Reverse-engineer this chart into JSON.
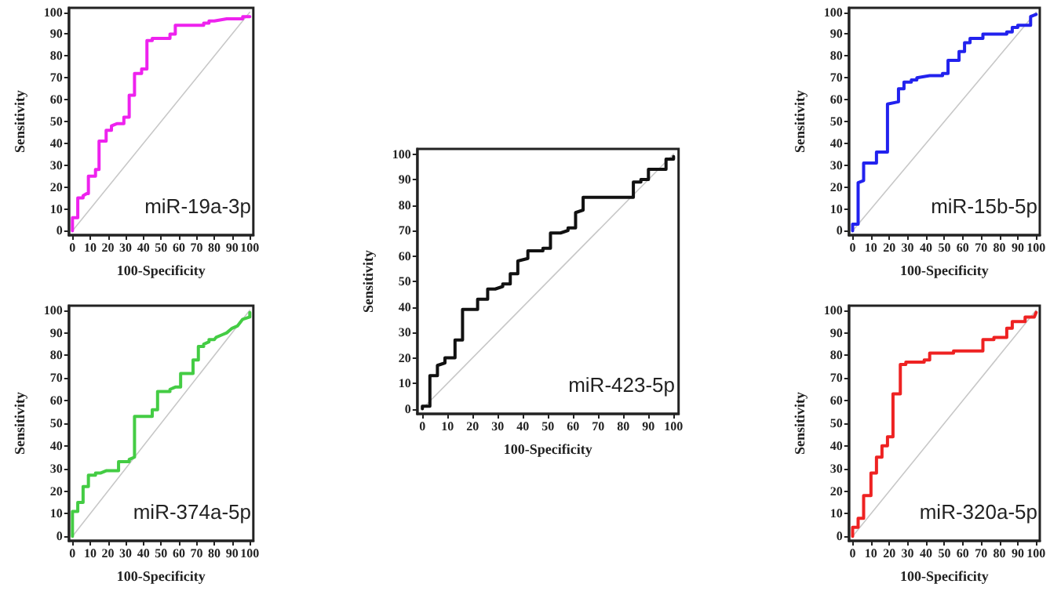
{
  "chart_data": [
    {
      "type": "line",
      "xlabel": "100-Specificity",
      "ylabel": "Sensitivity",
      "xlim": [
        -2,
        102
      ],
      "ylim": [
        -2,
        102
      ],
      "xticks": [
        0,
        10,
        20,
        30,
        40,
        50,
        60,
        70,
        80,
        90,
        100
      ],
      "yticks": [
        0,
        10,
        20,
        30,
        40,
        50,
        60,
        70,
        80,
        90,
        100
      ],
      "annotations": [
        "miR-19a-3p"
      ],
      "marker": "none",
      "grid": false,
      "series": [
        {
          "color": "#ee22ee",
          "x": [
            0,
            0,
            3,
            3,
            6,
            6,
            8,
            9,
            9,
            13,
            13,
            15,
            15,
            19,
            19,
            22,
            22,
            25,
            29,
            29,
            32,
            32,
            35,
            35,
            39,
            39,
            42,
            42,
            45,
            45,
            55,
            55,
            58,
            58,
            74,
            74,
            77,
            77,
            80,
            87,
            96,
            96,
            100
          ],
          "values": [
            0,
            6,
            6,
            15,
            15,
            16,
            17,
            17,
            25,
            25,
            28,
            28,
            41,
            41,
            46,
            46,
            48,
            49,
            49,
            52,
            52,
            62,
            62,
            72,
            72,
            74,
            74,
            87,
            87,
            88,
            88,
            90,
            90,
            94,
            94,
            95,
            95,
            96,
            96,
            97,
            97,
            98,
            98
          ]
        },
        {
          "color": "#c8c8c8",
          "x": [
            0,
            100
          ],
          "values": [
            0,
            100
          ]
        }
      ]
    },
    {
      "type": "line",
      "xlabel": "100-Specificity",
      "ylabel": "Sensitivity",
      "xlim": [
        -2,
        102
      ],
      "ylim": [
        -2,
        102
      ],
      "xticks": [
        0,
        10,
        20,
        30,
        40,
        50,
        60,
        70,
        80,
        90,
        100
      ],
      "yticks": [
        0,
        10,
        20,
        30,
        40,
        50,
        60,
        70,
        80,
        90,
        100
      ],
      "annotations": [
        "miR-374a-5p"
      ],
      "marker": "none",
      "grid": false,
      "series": [
        {
          "color": "#44cc44",
          "x": [
            0,
            0,
            3,
            3,
            6,
            6,
            9,
            9,
            13,
            13,
            16,
            19,
            26,
            26,
            32,
            32,
            35,
            35,
            45,
            45,
            48,
            48,
            55,
            55,
            58,
            61,
            61,
            68,
            68,
            71,
            71,
            74,
            74,
            77,
            77,
            80,
            81,
            84,
            87,
            90,
            93,
            96,
            100,
            100
          ],
          "values": [
            0,
            11,
            11,
            15,
            15,
            22,
            22,
            27,
            27,
            28,
            28,
            29,
            29,
            33,
            33,
            34,
            35,
            53,
            53,
            56,
            56,
            64,
            64,
            65,
            66,
            66,
            72,
            72,
            78,
            78,
            84,
            84,
            85,
            86,
            87,
            87,
            88,
            89,
            90,
            92,
            93,
            96,
            97,
            99
          ]
        },
        {
          "color": "#c8c8c8",
          "x": [
            0,
            100
          ],
          "values": [
            0,
            100
          ]
        }
      ]
    },
    {
      "type": "line",
      "xlabel": "100-Specificity",
      "ylabel": "Sensitivity",
      "xlim": [
        -2,
        102
      ],
      "ylim": [
        -2,
        102
      ],
      "xticks": [
        0,
        10,
        20,
        30,
        40,
        50,
        60,
        70,
        80,
        90,
        100
      ],
      "yticks": [
        0,
        10,
        20,
        30,
        40,
        50,
        60,
        70,
        80,
        90,
        100
      ],
      "annotations": [
        "miR-423-5p"
      ],
      "marker": "none",
      "grid": false,
      "series": [
        {
          "color": "#111111",
          "x": [
            0,
            0,
            3,
            3,
            6,
            6,
            9,
            9,
            13,
            13,
            16,
            16,
            22,
            22,
            26,
            26,
            29,
            32,
            32,
            35,
            35,
            38,
            38,
            42,
            42,
            48,
            48,
            51,
            51,
            55,
            58,
            58,
            61,
            61,
            64,
            64,
            84,
            84,
            87,
            87,
            90,
            90,
            97,
            97,
            100,
            100
          ],
          "values": [
            0,
            1,
            1,
            13,
            13,
            17,
            18,
            20,
            20,
            27,
            27,
            39,
            39,
            43,
            43,
            47,
            47,
            48,
            49,
            49,
            53,
            53,
            58,
            59,
            62,
            62,
            63,
            63,
            69,
            69,
            70,
            71,
            71,
            77,
            78,
            83,
            83,
            89,
            89,
            90,
            90,
            94,
            94,
            98,
            98,
            99
          ]
        },
        {
          "color": "#c8c8c8",
          "x": [
            0,
            100
          ],
          "values": [
            0,
            100
          ]
        }
      ]
    },
    {
      "type": "line",
      "xlabel": "100-Specificity",
      "ylabel": "Sensitivity",
      "xlim": [
        -2,
        102
      ],
      "ylim": [
        -2,
        102
      ],
      "xticks": [
        0,
        10,
        20,
        30,
        40,
        50,
        60,
        70,
        80,
        90,
        100
      ],
      "yticks": [
        0,
        10,
        20,
        30,
        40,
        50,
        60,
        70,
        80,
        90,
        100
      ],
      "annotations": [
        "miR-15b-5p"
      ],
      "marker": "none",
      "grid": false,
      "series": [
        {
          "color": "#2222ee",
          "x": [
            0,
            0,
            3,
            3,
            6,
            6,
            13,
            13,
            19,
            19,
            25,
            25,
            28,
            28,
            32,
            32,
            35,
            35,
            42,
            49,
            49,
            52,
            52,
            58,
            58,
            61,
            61,
            64,
            64,
            71,
            71,
            84,
            84,
            87,
            87,
            90,
            90,
            97,
            97,
            100
          ],
          "values": [
            0,
            3,
            3,
            22,
            23,
            31,
            31,
            36,
            36,
            58,
            59,
            65,
            65,
            68,
            68,
            69,
            69,
            70,
            71,
            71,
            72,
            72,
            78,
            78,
            82,
            82,
            86,
            86,
            88,
            88,
            90,
            90,
            91,
            91,
            93,
            93,
            94,
            94,
            98,
            99
          ]
        },
        {
          "color": "#c8c8c8",
          "x": [
            0,
            100
          ],
          "values": [
            0,
            100
          ]
        }
      ]
    },
    {
      "type": "line",
      "xlabel": "100-Specificity",
      "ylabel": "Sensitivity",
      "xlim": [
        -2,
        102
      ],
      "ylim": [
        -2,
        102
      ],
      "xticks": [
        0,
        10,
        20,
        30,
        40,
        50,
        60,
        70,
        80,
        90,
        100
      ],
      "yticks": [
        0,
        10,
        20,
        30,
        40,
        50,
        60,
        70,
        80,
        90,
        100
      ],
      "annotations": [
        "miR-320a-5p"
      ],
      "marker": "none",
      "grid": false,
      "series": [
        {
          "color": "#ee2222",
          "x": [
            0,
            0,
            3,
            3,
            6,
            6,
            10,
            10,
            13,
            13,
            16,
            16,
            19,
            19,
            22,
            22,
            26,
            26,
            29,
            29,
            39,
            39,
            42,
            42,
            55,
            55,
            71,
            71,
            77,
            77,
            84,
            84,
            87,
            87,
            94,
            94,
            99,
            100
          ],
          "values": [
            0,
            4,
            4,
            8,
            8,
            18,
            18,
            28,
            28,
            35,
            35,
            40,
            40,
            44,
            44,
            63,
            63,
            76,
            76,
            77,
            77,
            78,
            78,
            81,
            81,
            82,
            82,
            87,
            87,
            88,
            88,
            92,
            92,
            95,
            95,
            97,
            97,
            99
          ]
        },
        {
          "color": "#c8c8c8",
          "x": [
            0,
            100
          ],
          "values": [
            0,
            100
          ]
        }
      ]
    }
  ]
}
